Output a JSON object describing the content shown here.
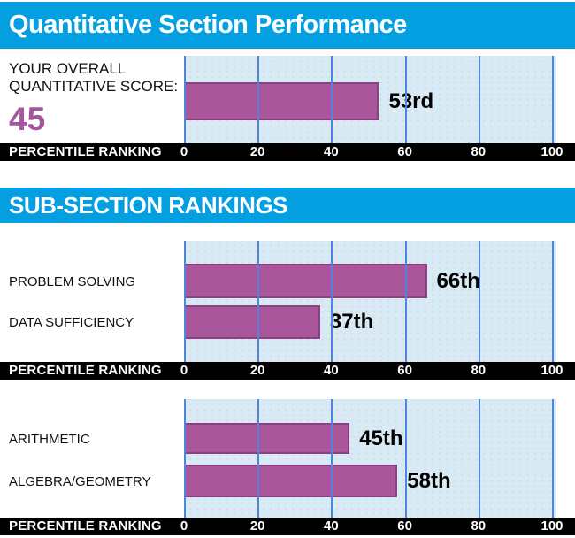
{
  "colors": {
    "header_blue": "#049FE0",
    "chart_background": "#D7EBF7",
    "gridline_blue": "#4D85DF",
    "minor_dot_pink": "#EFCBC8",
    "bar_fill_purple": "#A9569B",
    "bar_border_purple": "#8C4084",
    "score_purple": "#A4569E",
    "axis_bar_black": "#000000"
  },
  "header1": {
    "title": "Quantitative Section Performance"
  },
  "header2": {
    "title": "SUB-SECTION RANKINGS"
  },
  "overall": {
    "label_line1": "YOUR OVERALL",
    "label_line2": "QUANTITATIVE SCORE:",
    "score": "45"
  },
  "axis": {
    "label": "PERCENTILE RANKING",
    "min": 0,
    "max": 100,
    "ticks": [
      0,
      20,
      40,
      60,
      80,
      100
    ]
  },
  "charts": [
    {
      "id": "overall-percentile",
      "bars": [
        {
          "label": "",
          "value": 53,
          "value_label": "53rd"
        }
      ]
    },
    {
      "id": "subsection-rankings-1",
      "bars": [
        {
          "label": "PROBLEM SOLVING",
          "value": 66,
          "value_label": "66th"
        },
        {
          "label": "DATA SUFFICIENCY",
          "value": 37,
          "value_label": "37th"
        }
      ]
    },
    {
      "id": "subsection-rankings-2",
      "bars": [
        {
          "label": "ARITHMETIC",
          "value": 45,
          "value_label": "45th"
        },
        {
          "label": "ALGEBRA/GEOMETRY",
          "value": 58,
          "value_label": "58th"
        }
      ]
    }
  ],
  "chart_data": [
    {
      "type": "bar",
      "orientation": "horizontal",
      "title": "Quantitative Section Performance",
      "categories": [
        "YOUR OVERALL QUANTITATIVE SCORE: 45"
      ],
      "values": [
        53
      ],
      "data_labels": [
        "53rd"
      ],
      "xlabel": "PERCENTILE RANKING",
      "xlim": [
        0,
        100
      ],
      "xticks": [
        0,
        20,
        40,
        60,
        80,
        100
      ],
      "grid": "major vertical solid blue, minor dotted pink",
      "legend": "none",
      "overall_score": 45
    },
    {
      "type": "bar",
      "orientation": "horizontal",
      "title": "SUB-SECTION RANKINGS",
      "categories": [
        "PROBLEM SOLVING",
        "DATA SUFFICIENCY"
      ],
      "values": [
        66,
        37
      ],
      "data_labels": [
        "66th",
        "37th"
      ],
      "xlabel": "PERCENTILE RANKING",
      "xlim": [
        0,
        100
      ],
      "xticks": [
        0,
        20,
        40,
        60,
        80,
        100
      ],
      "grid": "major vertical solid blue, minor dotted pink",
      "legend": "none"
    },
    {
      "type": "bar",
      "orientation": "horizontal",
      "title": "SUB-SECTION RANKINGS (continued)",
      "categories": [
        "ARITHMETIC",
        "ALGEBRA/GEOMETRY"
      ],
      "values": [
        45,
        58
      ],
      "data_labels": [
        "45th",
        "58th"
      ],
      "xlabel": "PERCENTILE RANKING",
      "xlim": [
        0,
        100
      ],
      "xticks": [
        0,
        20,
        40,
        60,
        80,
        100
      ],
      "grid": "major vertical solid blue, minor dotted pink",
      "legend": "none"
    }
  ]
}
